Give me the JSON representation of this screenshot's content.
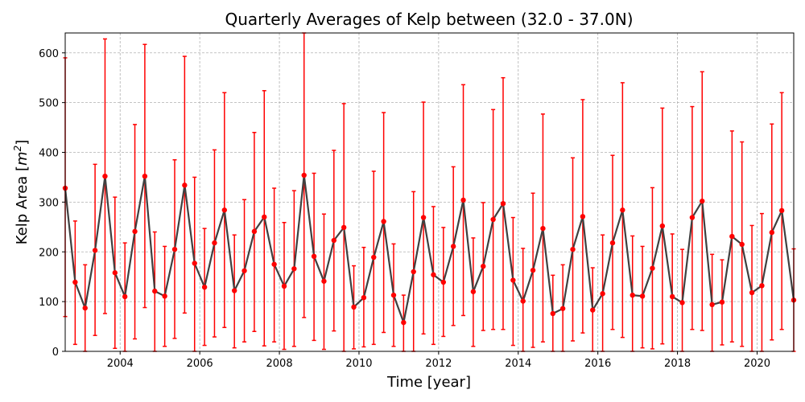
{
  "chart_data": {
    "type": "line",
    "title": "Quarterly Averages of Kelp between (32.0 - 37.0N)",
    "xlabel": "Time [year]",
    "ylabel_main": "Kelp Area [",
    "ylabel_unit_base": "m",
    "ylabel_unit_exp": "2",
    "ylabel_close": "]",
    "xlim": [
      2002.62,
      2020.92
    ],
    "ylim": [
      0,
      640
    ],
    "xticks": [
      2004,
      2006,
      2008,
      2010,
      2012,
      2014,
      2016,
      2018,
      2020
    ],
    "yticks": [
      0,
      100,
      200,
      300,
      400,
      500,
      600
    ],
    "grid": true,
    "colors": {
      "line": "#404040",
      "marker": "#ff0000",
      "errorbar": "#ff0000",
      "grid": "#b0b0b0"
    },
    "series": [
      {
        "x": [
          2002.62,
          2002.87,
          2003.12,
          2003.37,
          2003.62,
          2003.87,
          2004.12,
          2004.37,
          2004.62,
          2004.87,
          2005.12,
          2005.37,
          2005.62,
          2005.87,
          2006.12,
          2006.37,
          2006.62,
          2006.87,
          2007.12,
          2007.37,
          2007.62,
          2007.87,
          2008.12,
          2008.37,
          2008.62,
          2008.87,
          2009.12,
          2009.37,
          2009.62,
          2009.87,
          2010.12,
          2010.37,
          2010.62,
          2010.87,
          2011.12,
          2011.37,
          2011.62,
          2011.87,
          2012.12,
          2012.37,
          2012.62,
          2012.87,
          2013.12,
          2013.37,
          2013.62,
          2013.87,
          2014.12,
          2014.37,
          2014.62,
          2014.87,
          2015.12,
          2015.37,
          2015.62,
          2015.87,
          2016.12,
          2016.37,
          2016.62,
          2016.87,
          2017.12,
          2017.37,
          2017.62,
          2017.87,
          2018.12,
          2018.37,
          2018.62,
          2018.87,
          2019.12,
          2019.37,
          2019.62,
          2019.87,
          2020.12,
          2020.37,
          2020.62,
          2020.92
        ],
        "y": [
          328,
          139,
          87,
          203,
          352,
          158,
          110,
          241,
          352,
          121,
          111,
          205,
          334,
          177,
          129,
          218,
          284,
          122,
          162,
          241,
          270,
          175,
          131,
          166,
          354,
          191,
          141,
          223,
          249,
          89,
          108,
          189,
          261,
          113,
          58,
          160,
          269,
          154,
          139,
          211,
          304,
          120,
          171,
          265,
          297,
          143,
          101,
          163,
          247,
          76,
          86,
          205,
          271,
          83,
          116,
          218,
          284,
          113,
          111,
          167,
          252,
          110,
          98,
          269,
          302,
          94,
          99,
          231,
          215,
          118,
          132,
          239,
          283,
          103
        ],
        "yerr_low": [
          70,
          14,
          0,
          32,
          76,
          6,
          0,
          25,
          88,
          0,
          10,
          26,
          77,
          0,
          12,
          29,
          48,
          7,
          19,
          40,
          11,
          19,
          4,
          10,
          68,
          22,
          4,
          41,
          0,
          5,
          9,
          14,
          38,
          10,
          0,
          0,
          35,
          14,
          30,
          52,
          72,
          10,
          42,
          44,
          44,
          12,
          0,
          8,
          19,
          0,
          0,
          21,
          37,
          0,
          0,
          44,
          28,
          0,
          7,
          5,
          15,
          0,
          0,
          44,
          42,
          0,
          13,
          19,
          10,
          0,
          0,
          23,
          44,
          0
        ],
        "yerr_high": [
          590,
          262,
          174,
          376,
          628,
          310,
          218,
          456,
          617,
          240,
          211,
          385,
          593,
          350,
          247,
          405,
          520,
          234,
          305,
          440,
          524,
          328,
          259,
          323,
          640,
          358,
          276,
          404,
          498,
          172,
          209,
          362,
          480,
          216,
          113,
          321,
          501,
          291,
          249,
          371,
          536,
          228,
          299,
          486,
          550,
          269,
          207,
          318,
          477,
          153,
          174,
          389,
          506,
          168,
          234,
          394,
          540,
          232,
          211,
          329,
          489,
          236,
          205,
          492,
          562,
          195,
          184,
          443,
          421,
          253,
          277,
          457,
          520,
          206
        ]
      }
    ]
  }
}
